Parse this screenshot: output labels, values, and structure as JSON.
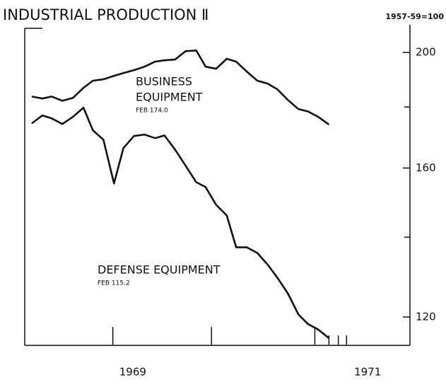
{
  "chart_data": {
    "type": "line",
    "title": "INDUSTRIAL PRODUCTION Ⅱ",
    "units_label": "1957-59=100",
    "x": [
      1968.14,
      1968.23,
      1968.31,
      1968.4,
      1968.49,
      1968.58,
      1968.66,
      1968.75,
      1968.84,
      1968.92,
      1969.01,
      1969.1,
      1969.19,
      1969.27,
      1969.36,
      1969.45,
      1969.54,
      1969.62,
      1969.71,
      1969.8,
      1969.88,
      1969.97,
      1970.06,
      1970.15,
      1970.23,
      1970.32,
      1970.41,
      1970.49,
      1970.58,
      1970.67
    ],
    "series": [
      {
        "label_lines": [
          "BUSINESS",
          "EQUIPMENT"
        ],
        "note": "FEB 174.0",
        "color": "#111111",
        "values": [
          183.7,
          183.0,
          183.7,
          182.2,
          183.2,
          186.8,
          189.4,
          189.9,
          191.2,
          192.2,
          193.3,
          194.6,
          196.5,
          197.0,
          197.3,
          200.5,
          200.8,
          194.6,
          193.8,
          197.6,
          196.5,
          192.8,
          189.4,
          188.3,
          186.3,
          182.5,
          179.3,
          178.5,
          176.6,
          174.0
        ]
      },
      {
        "label_lines": [
          "DEFENSE EQUIPMENT"
        ],
        "note": "FEB 115.2",
        "color": "#111111",
        "values": [
          174.4,
          177.1,
          176.1,
          174.2,
          176.6,
          179.8,
          172.1,
          169.0,
          155.3,
          166.3,
          170.2,
          170.7,
          169.5,
          170.4,
          165.8,
          160.7,
          155.7,
          154.2,
          149.0,
          146.0,
          137.3,
          137.3,
          135.8,
          132.7,
          129.5,
          125.6,
          120.6,
          118.4,
          117.1,
          115.2
        ]
      }
    ],
    "xlim": [
      1968.08,
      1971.39
    ],
    "xticks": [
      1969,
      1971
    ],
    "xminor_ticks": [
      1968.83,
      1969.67,
      1970.55,
      1970.67,
      1970.75,
      1970.82
    ],
    "ylim": [
      113.6,
      211
    ],
    "yticks": [
      120,
      160,
      200
    ],
    "yminor_ticks": [
      140,
      180
    ],
    "log_scale": true,
    "grid": false
  }
}
